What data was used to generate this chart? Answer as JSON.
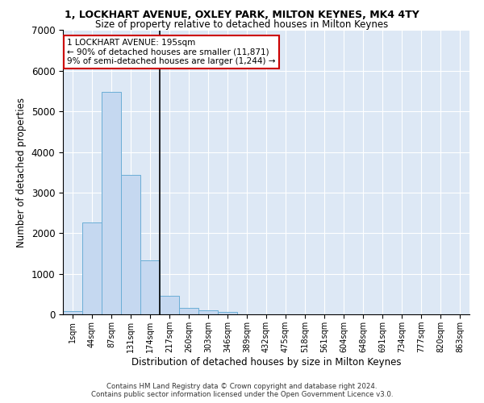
{
  "title": "1, LOCKHART AVENUE, OXLEY PARK, MILTON KEYNES, MK4 4TY",
  "subtitle": "Size of property relative to detached houses in Milton Keynes",
  "xlabel": "Distribution of detached houses by size in Milton Keynes",
  "ylabel": "Number of detached properties",
  "bar_color": "#c5d8f0",
  "bar_edge_color": "#6baed6",
  "categories": [
    "1sqm",
    "44sqm",
    "87sqm",
    "131sqm",
    "174sqm",
    "217sqm",
    "260sqm",
    "303sqm",
    "346sqm",
    "389sqm",
    "432sqm",
    "475sqm",
    "518sqm",
    "561sqm",
    "604sqm",
    "648sqm",
    "691sqm",
    "734sqm",
    "777sqm",
    "820sqm",
    "863sqm"
  ],
  "values": [
    80,
    2270,
    5480,
    3430,
    1330,
    460,
    165,
    90,
    50,
    0,
    0,
    0,
    0,
    0,
    0,
    0,
    0,
    0,
    0,
    0,
    0
  ],
  "ylim": [
    0,
    7000
  ],
  "yticks": [
    0,
    1000,
    2000,
    3000,
    4000,
    5000,
    6000,
    7000
  ],
  "annotation_text": "1 LOCKHART AVENUE: 195sqm\n← 90% of detached houses are smaller (11,871)\n9% of semi-detached houses are larger (1,244) →",
  "annotation_box_color": "#ffffff",
  "annotation_box_edge": "#cc0000",
  "vline_color": "#000000",
  "bg_color": "#dde8f5",
  "footer_line1": "Contains HM Land Registry data © Crown copyright and database right 2024.",
  "footer_line2": "Contains public sector information licensed under the Open Government Licence v3.0."
}
